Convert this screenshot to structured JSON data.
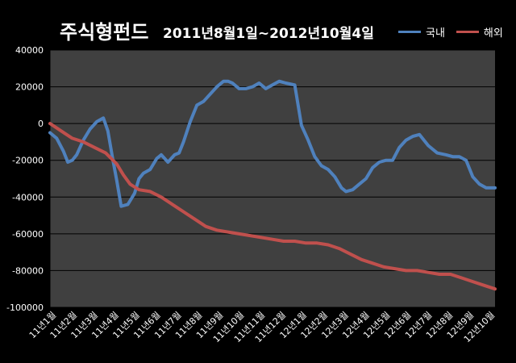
{
  "header": {
    "title": "주식형펀드",
    "subtitle": "2011년8월1일~2012년10월4일"
  },
  "colors": {
    "background": "#000000",
    "plot_area": "#404040",
    "grid": "#000000",
    "domestic": "#4f81bd",
    "overseas": "#c0504d",
    "text": "#ffffff"
  },
  "chart_data": {
    "type": "line",
    "title": "주식형펀드",
    "subtitle": "2011년8월1일~2012년10월4일",
    "xlabel": "",
    "ylabel": "",
    "ylim": [
      -100000,
      40000
    ],
    "yticks": [
      40000,
      20000,
      0,
      -20000,
      -40000,
      -60000,
      -80000,
      -100000
    ],
    "ytick_labels": [
      "40000",
      "20000",
      "0",
      "-20000",
      "-40000",
      "-60000",
      "-80000",
      "-100000"
    ],
    "xlim": [
      0,
      20
    ],
    "xtick_labels": [
      "11년1월",
      "11년2월",
      "11년3월",
      "11년4월",
      "11년5월",
      "11년6월",
      "11년7월",
      "11년8월",
      "11년9월",
      "11년10월",
      "11년11월",
      "11년12월",
      "12년1월",
      "12년2월",
      "12년3월",
      "12년4월",
      "12년5월",
      "12년6월",
      "12년7월",
      "12년8월",
      "12년9월",
      "12년10월"
    ],
    "grid": true,
    "legend_position": "top-right",
    "series": [
      {
        "name": "국내",
        "color": "#4f81bd",
        "x": [
          0,
          0.3,
          0.6,
          0.8,
          1.0,
          1.2,
          1.5,
          1.8,
          2.1,
          2.4,
          2.6,
          2.8,
          3.0,
          3.2,
          3.5,
          3.8,
          4.0,
          4.2,
          4.5,
          4.8,
          5.0,
          5.3,
          5.6,
          5.8,
          6.0,
          6.3,
          6.6,
          6.9,
          7.2,
          7.5,
          7.8,
          8.0,
          8.2,
          8.5,
          8.8,
          9.1,
          9.4,
          9.7,
          10.0,
          10.3,
          10.6,
          11.0,
          11.3,
          11.6,
          11.9,
          12.2,
          12.5,
          12.8,
          13.0,
          13.1,
          13.3,
          13.6,
          13.9,
          14.2,
          14.5,
          14.8,
          15.1,
          15.4,
          15.7,
          16.0,
          16.3,
          16.6,
          17.0,
          17.4,
          17.8,
          18.1,
          18.4,
          18.7,
          19.0,
          19.3,
          19.6,
          19.9,
          20.0
        ],
        "y": [
          -5000,
          -8000,
          -15000,
          -21000,
          -20000,
          -17000,
          -9000,
          -3000,
          1000,
          3000,
          -4000,
          -18000,
          -31000,
          -45000,
          -44000,
          -38000,
          -30000,
          -27000,
          -25000,
          -19000,
          -17000,
          -21000,
          -17000,
          -16000,
          -10000,
          1000,
          10000,
          12000,
          16000,
          20000,
          23000,
          23000,
          22000,
          19000,
          19000,
          20000,
          22000,
          19000,
          21000,
          23000,
          22000,
          21000,
          -1000,
          -9000,
          -18000,
          -23000,
          -25000,
          -29000,
          -33000,
          -35000,
          -37000,
          -36000,
          -33000,
          -30000,
          -24000,
          -21000,
          -20000,
          -20000,
          -13000,
          -9000,
          -7000,
          -6000,
          -12000,
          -16000,
          -17000,
          -18000,
          -18000,
          -20000,
          -29000,
          -33000,
          -35000,
          -35000,
          -35000
        ]
      },
      {
        "name": "해외",
        "color": "#c0504d",
        "x": [
          0,
          0.5,
          1.0,
          1.5,
          2.0,
          2.5,
          3.0,
          3.3,
          3.6,
          4.0,
          4.5,
          5.0,
          5.5,
          6.0,
          6.5,
          7.0,
          7.5,
          8.0,
          8.5,
          9.0,
          9.5,
          10.0,
          10.5,
          11.0,
          11.5,
          12.0,
          12.5,
          13.0,
          13.5,
          14.0,
          14.5,
          15.0,
          15.5,
          16.0,
          16.5,
          17.0,
          17.5,
          18.0,
          18.5,
          19.0,
          19.5,
          20.0
        ],
        "y": [
          0,
          -4000,
          -8000,
          -10000,
          -13000,
          -16000,
          -22000,
          -28000,
          -33000,
          -36000,
          -37000,
          -40000,
          -44000,
          -48000,
          -52000,
          -56000,
          -58000,
          -59000,
          -60000,
          -61000,
          -62000,
          -63000,
          -64000,
          -64000,
          -65000,
          -65000,
          -66000,
          -68000,
          -71000,
          -74000,
          -76000,
          -78000,
          -79000,
          -80000,
          -80000,
          -81000,
          -82000,
          -82000,
          -84000,
          -86000,
          -88000,
          -90000
        ]
      }
    ]
  }
}
